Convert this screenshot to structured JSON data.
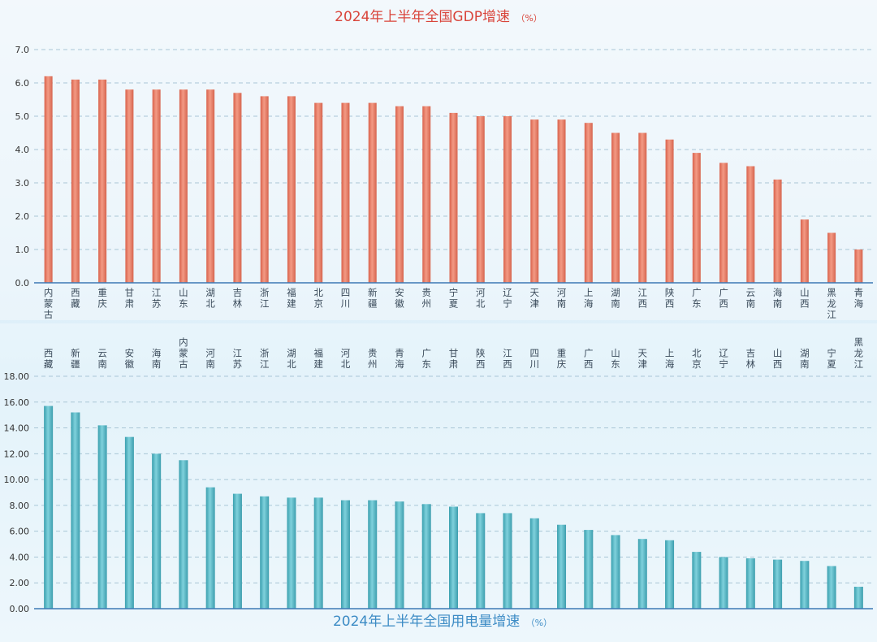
{
  "chart_data": [
    {
      "type": "bar",
      "title": "2024年上半年全国GDP增速",
      "unit": "（%）",
      "ylim": [
        0,
        7
      ],
      "yticks": [
        "0.0",
        "1.0",
        "2.0",
        "3.0",
        "4.0",
        "5.0",
        "6.0",
        "7.0"
      ],
      "grid": true,
      "legend": "none",
      "color": "#e8806a",
      "title_color": "#d9453b",
      "categories": [
        "内蒙古",
        "西藏",
        "重庆",
        "甘肃",
        "江苏",
        "山东",
        "湖北",
        "吉林",
        "浙江",
        "福建",
        "北京",
        "四川",
        "新疆",
        "安徽",
        "贵州",
        "宁夏",
        "河北",
        "辽宁",
        "天津",
        "河南",
        "上海",
        "湖南",
        "江西",
        "陕西",
        "广东",
        "广西",
        "云南",
        "海南",
        "山西",
        "黑龙江",
        "青海"
      ],
      "values": [
        6.2,
        6.1,
        6.1,
        5.8,
        5.8,
        5.8,
        5.8,
        5.7,
        5.6,
        5.6,
        5.4,
        5.4,
        5.4,
        5.3,
        5.3,
        5.1,
        5.0,
        5.0,
        4.9,
        4.9,
        4.8,
        4.5,
        4.5,
        4.3,
        3.9,
        3.6,
        3.5,
        3.1,
        1.9,
        1.5,
        1.0
      ]
    },
    {
      "type": "bar",
      "title": "2024年上半年全国用电量增速",
      "unit": "（%）",
      "ylim": [
        0,
        18
      ],
      "yticks": [
        "0.00",
        "2.00",
        "4.00",
        "6.00",
        "8.00",
        "10.00",
        "12.00",
        "14.00",
        "16.00",
        "18.00"
      ],
      "grid": true,
      "legend": "none",
      "color": "#52b5c3",
      "title_color": "#3c8bc5",
      "categories": [
        "西藏",
        "新疆",
        "云南",
        "安徽",
        "海南",
        "内蒙古",
        "河南",
        "江苏",
        "浙江",
        "湖北",
        "福建",
        "河北",
        "贵州",
        "青海",
        "广东",
        "甘肃",
        "陕西",
        "江西",
        "四川",
        "重庆",
        "广西",
        "山东",
        "天津",
        "上海",
        "北京",
        "辽宁",
        "吉林",
        "山西",
        "湖南",
        "宁夏",
        "黑龙江"
      ],
      "values": [
        15.7,
        15.2,
        14.2,
        13.3,
        12.0,
        11.5,
        9.4,
        8.9,
        8.7,
        8.6,
        8.6,
        8.4,
        8.4,
        8.3,
        8.1,
        7.9,
        7.4,
        7.4,
        7.0,
        6.5,
        6.1,
        5.7,
        5.4,
        5.3,
        4.4,
        4.0,
        3.9,
        3.8,
        3.7,
        3.3,
        1.7
      ]
    }
  ]
}
